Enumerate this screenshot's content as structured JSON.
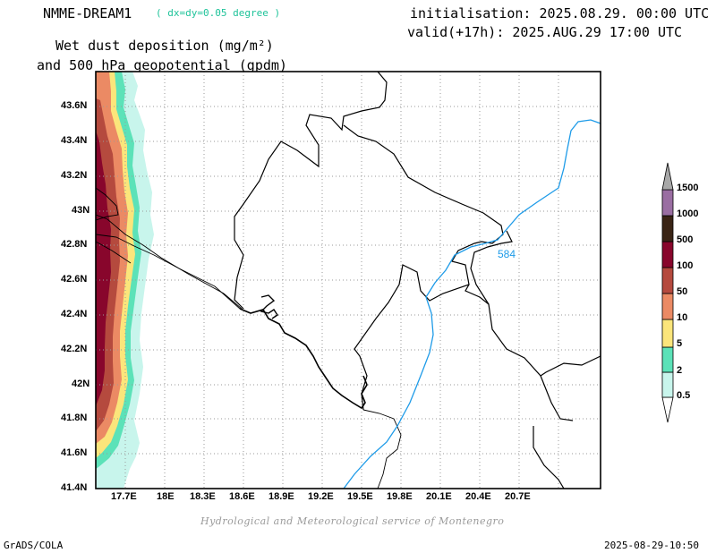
{
  "header": {
    "model_name": "NMME-DREAM1",
    "resolution": "( dx=dy=0.05 degree )",
    "initialisation": "initialisation: 2025.08.29. 00:00 UTC",
    "valid": "valid(+17h): 2025.AUG.29 17:00 UTC",
    "title_line1": "Wet dust deposition (mg/m²)",
    "title_line2": "and 500 hPa geopotential (gpdm)"
  },
  "axes": {
    "lat_ticks": [
      "43.6N",
      "43.4N",
      "43.2N",
      "43N",
      "42.8N",
      "42.6N",
      "42.4N",
      "42.2N",
      "42N",
      "41.8N",
      "41.6N",
      "41.4N"
    ],
    "lon_ticks": [
      "17.7E",
      "18E",
      "18.3E",
      "18.6E",
      "18.9E",
      "19.2E",
      "19.5E",
      "19.8E",
      "20.1E",
      "20.4E",
      "20.7E"
    ]
  },
  "contour": {
    "label": "584",
    "color": "#1e9be8"
  },
  "legend": {
    "levels": [
      "0.5",
      "2",
      "5",
      "10",
      "50",
      "100",
      "500",
      "1000",
      "1500"
    ],
    "colors": [
      "#c8f5ec",
      "#5ce2b8",
      "#fbe57b",
      "#eb8a64",
      "#b54a3e",
      "#88062c",
      "#3a2415",
      "#9a6ea2",
      "#a8a8a8"
    ]
  },
  "footer": {
    "credit": "Hydrological and Meteorological service of Montenegro",
    "software": "GrADS/COLA",
    "timestamp": "2025-08-29-10:50"
  }
}
